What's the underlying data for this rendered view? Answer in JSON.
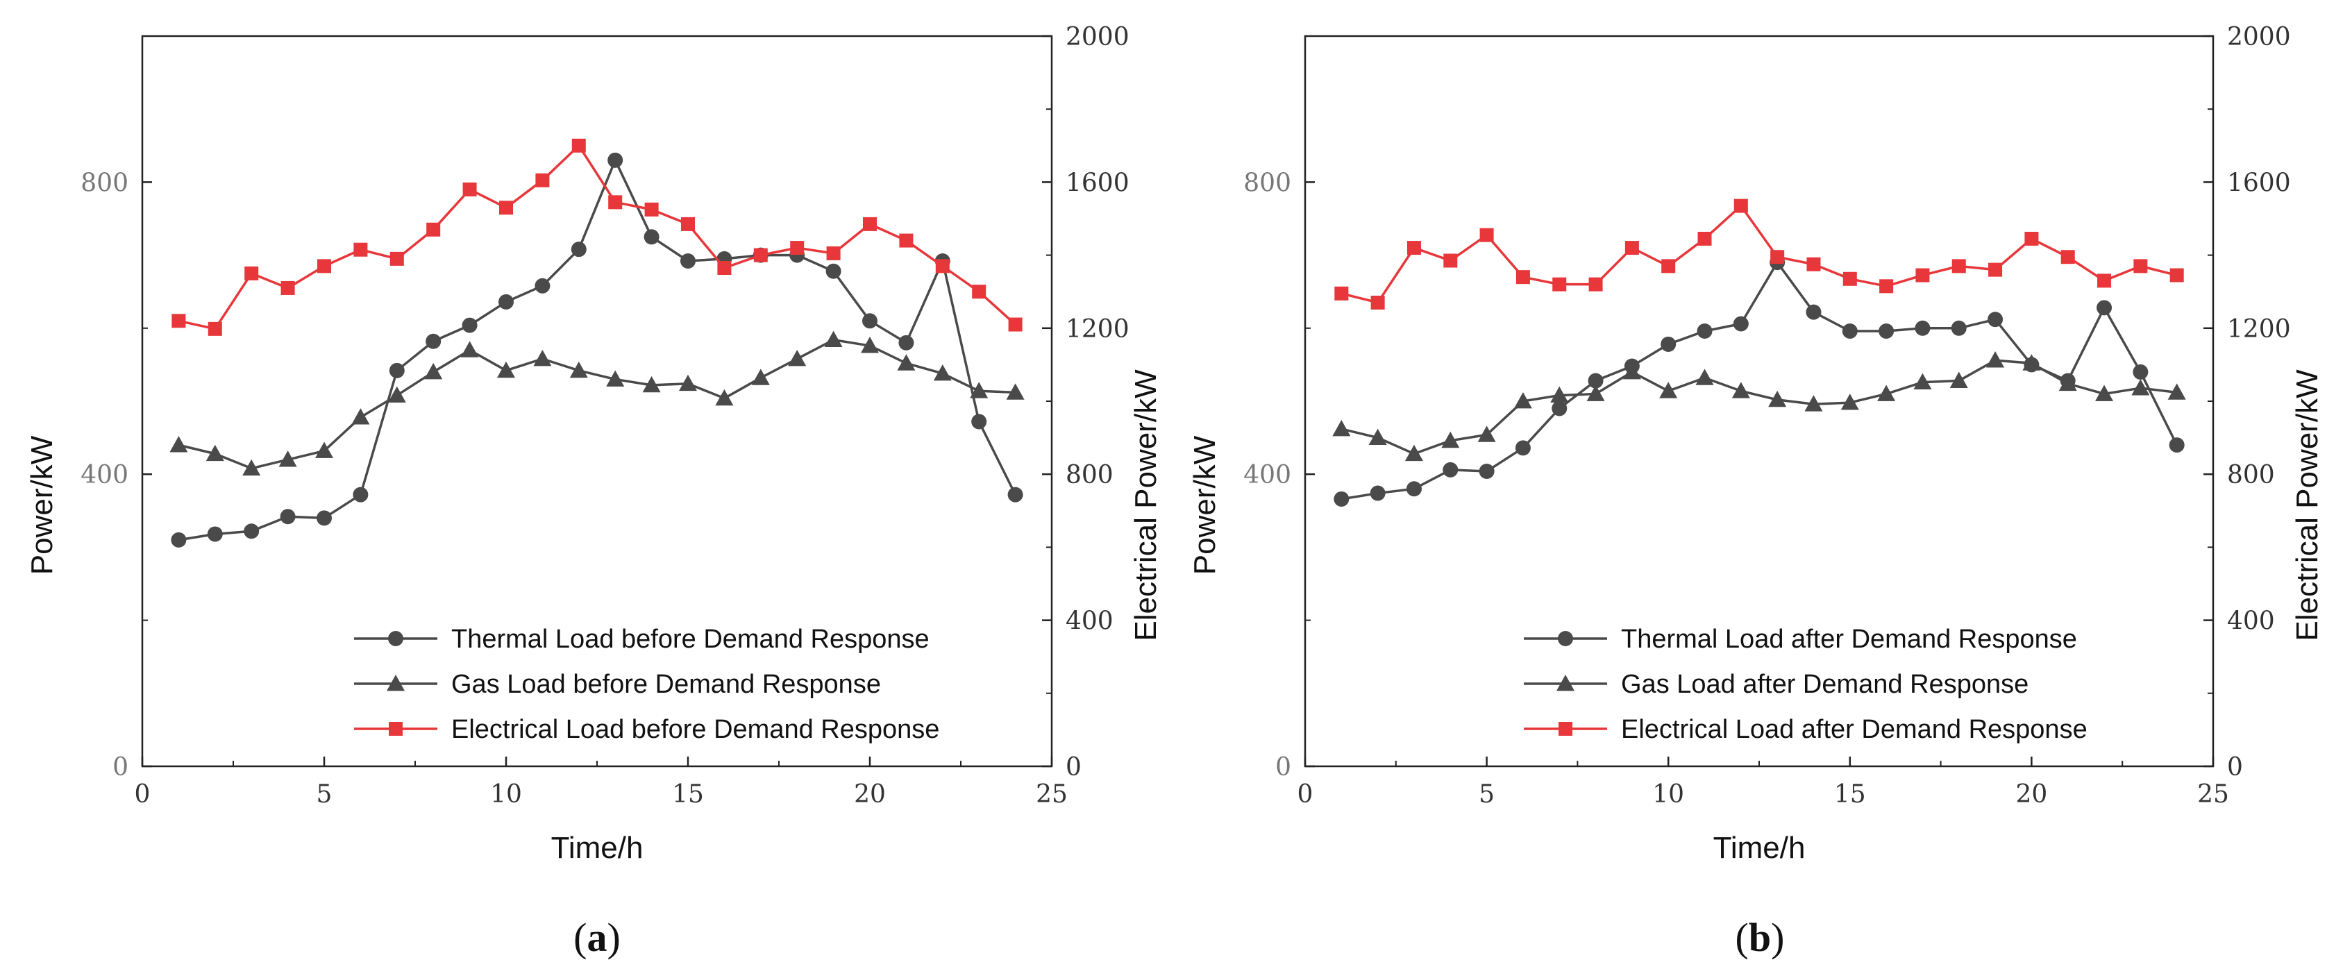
{
  "chart_data": [
    {
      "type": "line",
      "panel_label": "a",
      "xlabel": "Time/h",
      "ylabel_left": "Power/kW",
      "ylabel_right": "Electrical Power/kW",
      "xlim": [
        0,
        25
      ],
      "ylim_left": [
        0,
        1000
      ],
      "ylim_right": [
        0,
        2000
      ],
      "xticks": [
        0,
        5,
        10,
        15,
        20,
        25
      ],
      "yticks_left": [
        0,
        400,
        800
      ],
      "yticks_right": [
        0,
        400,
        800,
        1200,
        1600,
        2000
      ],
      "x": [
        1,
        2,
        3,
        4,
        5,
        6,
        7,
        8,
        9,
        10,
        11,
        12,
        13,
        14,
        15,
        16,
        17,
        18,
        19,
        20,
        21,
        22,
        23,
        24
      ],
      "legend_position": "bottom-right",
      "series": [
        {
          "name": "Thermal Load before Demand Response",
          "axis": "left",
          "marker": "circle",
          "color": "#4a4a4a",
          "values": [
            310,
            318,
            322,
            342,
            340,
            372,
            542,
            582,
            604,
            636,
            658,
            708,
            830,
            725,
            692,
            695,
            700,
            700,
            678,
            610,
            580,
            692,
            472,
            372
          ]
        },
        {
          "name": "Gas Load before Demand Response",
          "axis": "left",
          "marker": "triangle",
          "color": "#4a4a4a",
          "values": [
            440,
            428,
            408,
            420,
            432,
            478,
            508,
            540,
            570,
            542,
            558,
            542,
            530,
            522,
            524,
            504,
            532,
            558,
            584,
            576,
            552,
            538,
            514,
            512
          ]
        },
        {
          "name": "Electrical Load before Demand Response",
          "axis": "right",
          "marker": "square",
          "color": "#e8373a",
          "values": [
            1220,
            1198,
            1350,
            1310,
            1370,
            1415,
            1390,
            1470,
            1580,
            1530,
            1605,
            1700,
            1545,
            1525,
            1485,
            1365,
            1400,
            1420,
            1405,
            1485,
            1440,
            1370,
            1300,
            1210
          ]
        }
      ]
    },
    {
      "type": "line",
      "panel_label": "b",
      "xlabel": "Time/h",
      "ylabel_left": "Power/kW",
      "ylabel_right": "Electrical Power/kW",
      "xlim": [
        0,
        25
      ],
      "ylim_left": [
        0,
        1000
      ],
      "ylim_right": [
        0,
        2000
      ],
      "xticks": [
        0,
        5,
        10,
        15,
        20,
        25
      ],
      "yticks_left": [
        0,
        400,
        800
      ],
      "yticks_right": [
        0,
        400,
        800,
        1200,
        1600,
        2000
      ],
      "x": [
        1,
        2,
        3,
        4,
        5,
        6,
        7,
        8,
        9,
        10,
        11,
        12,
        13,
        14,
        15,
        16,
        17,
        18,
        19,
        20,
        21,
        22,
        23,
        24
      ],
      "legend_position": "bottom-right",
      "series": [
        {
          "name": "Thermal Load after Demand Response",
          "axis": "left",
          "marker": "circle",
          "color": "#4a4a4a",
          "values": [
            366,
            374,
            380,
            406,
            404,
            436,
            490,
            528,
            548,
            578,
            596,
            606,
            690,
            622,
            596,
            596,
            600,
            600,
            612,
            550,
            528,
            628,
            540,
            440
          ]
        },
        {
          "name": "Gas Load after Demand Response",
          "axis": "left",
          "marker": "triangle",
          "color": "#4a4a4a",
          "values": [
            462,
            450,
            428,
            446,
            454,
            500,
            508,
            510,
            540,
            514,
            532,
            514,
            502,
            496,
            498,
            510,
            526,
            528,
            556,
            552,
            524,
            510,
            518,
            512
          ]
        },
        {
          "name": "Electrical Load after Demand Response",
          "axis": "right",
          "marker": "square",
          "color": "#e8373a",
          "values": [
            1295,
            1270,
            1420,
            1385,
            1455,
            1340,
            1320,
            1320,
            1420,
            1370,
            1445,
            1535,
            1395,
            1375,
            1335,
            1315,
            1345,
            1370,
            1360,
            1445,
            1395,
            1330,
            1370,
            1345
          ]
        }
      ]
    }
  ]
}
